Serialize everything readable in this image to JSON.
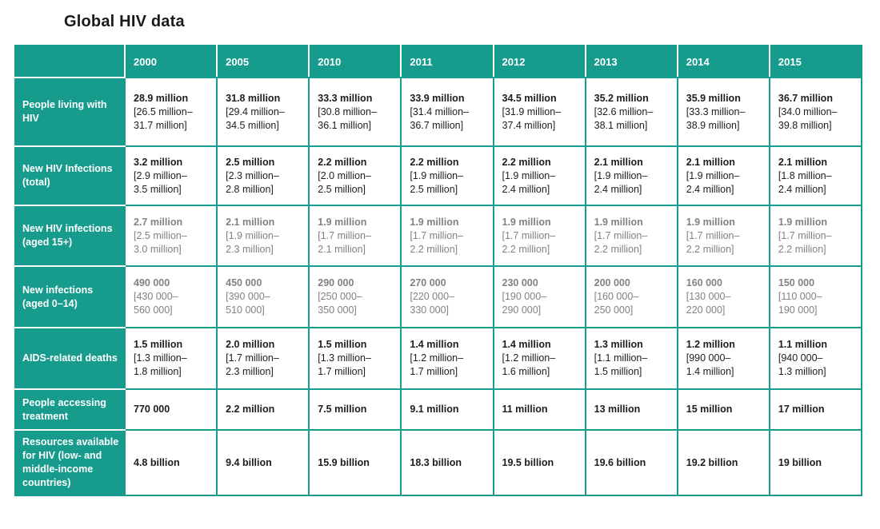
{
  "title": "Global HIV data",
  "colors": {
    "accent_teal": "#169b8c",
    "text": "#1d1d1b",
    "muted_text": "#808285",
    "header_text": "#ffffff"
  },
  "chart_data": {
    "type": "table",
    "title": "Global HIV data",
    "categories": [
      "2000",
      "2005",
      "2010",
      "2011",
      "2012",
      "2013",
      "2014",
      "2015"
    ],
    "series": [
      {
        "name": "People living with HIV",
        "muted": false,
        "values": [
          "28.9 million",
          "31.8 million",
          "33.3 million",
          "33.9 million",
          "34.5 million",
          "35.2 million",
          "35.9 million",
          "36.7 million"
        ],
        "ranges": [
          "26.5 million–31.7 million",
          "29.4 million–34.5 million",
          "30.8 million–36.1 million",
          "31.4 million–36.7 million",
          "31.9 million–37.4 million",
          "32.6 million–38.1 million",
          "33.3 million–38.9 million",
          "34.0 million–39.8 million"
        ]
      },
      {
        "name": "New HIV Infections (total)",
        "muted": false,
        "values": [
          "3.2 million",
          "2.5 million",
          "2.2 million",
          "2.2 million",
          "2.2 million",
          "2.1 million",
          "2.1 million",
          "2.1 million"
        ],
        "ranges": [
          "2.9 million–3.5 million",
          "2.3 million–2.8 million",
          "2.0 million–2.5 million",
          "1.9 million–2.5 million",
          "1.9 million–2.4 million",
          "1.9 million–2.4 million",
          "1.9 million–2.4 million",
          "1.8 million–2.4 million"
        ]
      },
      {
        "name": "New HIV infections (aged 15+)",
        "muted": true,
        "values": [
          "2.7 million",
          "2.1 million",
          "1.9 million",
          "1.9 million",
          "1.9 million",
          "1.9 million",
          "1.9 million",
          "1.9 million"
        ],
        "ranges": [
          "2.5 million–3.0 million",
          "1.9 million–2.3 million",
          "1.7 million–2.1 million",
          "1.7 million–2.2 million",
          "1.7 million–2.2 million",
          "1.7 million–2.2 million",
          "1.7 million–2.2 million",
          "1.7 million–2.2 million"
        ]
      },
      {
        "name": "New infections (aged 0–14)",
        "muted": true,
        "values": [
          "490 000",
          "450 000",
          "290 000",
          "270 000",
          "230 000",
          "200 000",
          "160 000",
          "150 000"
        ],
        "ranges": [
          "430 000–560 000",
          "390 000–510 000",
          "250 000–350 000",
          "220 000–330 000",
          "190 000–290 000",
          "160 000–250 000",
          "130 000–220 000",
          "110 000–190 000"
        ]
      },
      {
        "name": "AIDS-related deaths",
        "muted": false,
        "values": [
          "1.5 million",
          "2.0 million",
          "1.5 million",
          "1.4 million",
          "1.4 million",
          "1.3 million",
          "1.2 million",
          "1.1 million"
        ],
        "ranges": [
          "1.3 million–1.8 million",
          "1.7 million–2.3 million",
          "1.3 million–1.7 million",
          "1.2 million–1.7 million",
          "1.2 million–1.6 million",
          "1.1 million–1.5 million",
          "990 000–1.4 million",
          "940 000–1.3 million"
        ]
      },
      {
        "name": "People accessing treatment",
        "muted": false,
        "values": [
          "770 000",
          "2.2 million",
          "7.5 million",
          "9.1 million",
          "11 million",
          "13 million",
          "15 million",
          "17 million"
        ],
        "ranges": null
      },
      {
        "name": "Resources available for HIV (low- and middle-income countries)",
        "muted": false,
        "values": [
          "4.8 billion",
          "9.4 billion",
          "15.9 billion",
          "18.3 billion",
          "19.5 billion",
          "19.6 billion",
          "19.2 billion",
          "19 billion"
        ],
        "ranges": null
      }
    ]
  }
}
